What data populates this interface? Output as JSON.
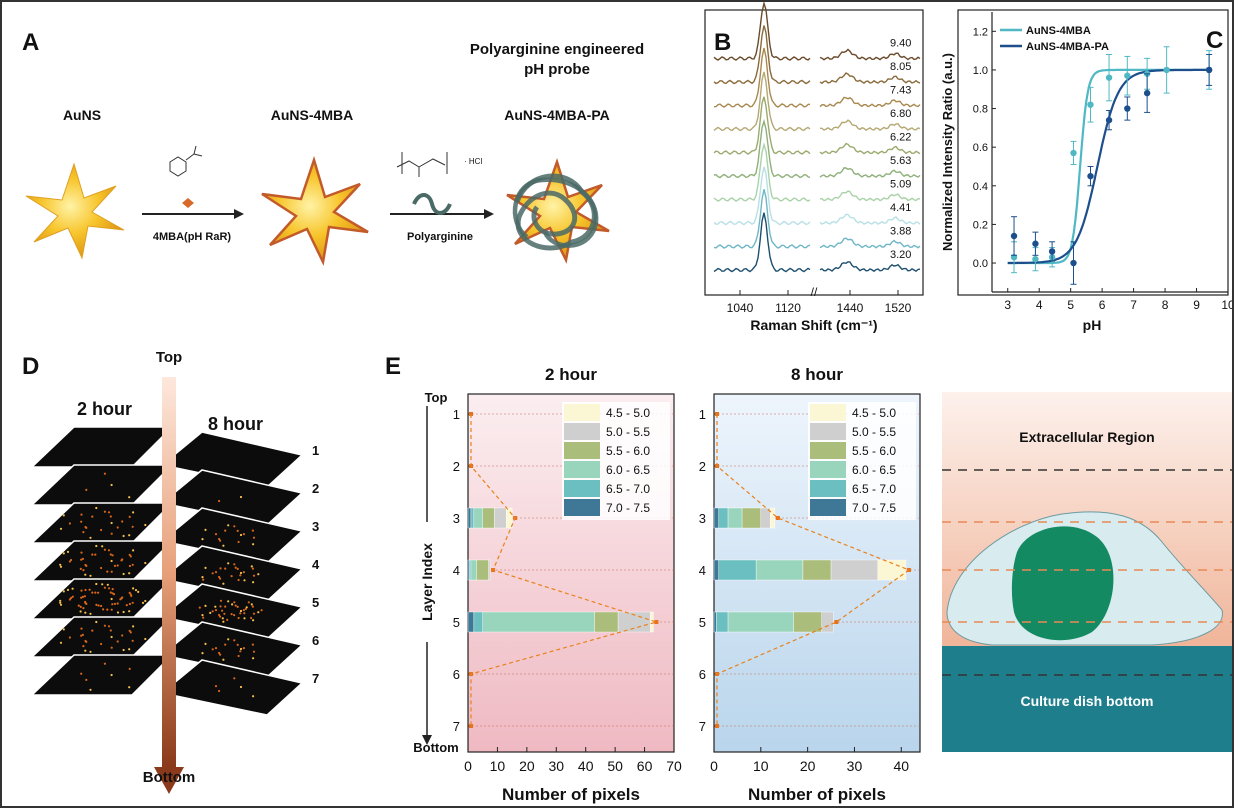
{
  "panels": {
    "A": "A",
    "B": "B",
    "C": "C",
    "D": "D",
    "E": "E"
  },
  "panel_a": {
    "header_line1": "Polyarginine engineered",
    "header_line2": "pH probe",
    "label_ausn": "AuNS",
    "label_4mba": "AuNS-4MBA",
    "label_pa": "AuNS-4MBA-PA",
    "arrow1_label": "4MBA(pH RaR)",
    "arrow2_label": "Polyarginine",
    "hcl": "· HCl",
    "colors": {
      "star": "#f2b21a",
      "star_edge": "#d4861a",
      "coat": "#4a6a66"
    }
  },
  "panel_d": {
    "top": "Top",
    "bottom": "Bottom",
    "label_2h": "2 hour",
    "label_8h": "8 hour",
    "layers": [
      "1",
      "2",
      "3",
      "4",
      "5",
      "6",
      "7"
    ]
  },
  "panel_e_schematic": {
    "extracellular": "Extracellular Region",
    "dish": "Culture dish bottom",
    "colors": {
      "dish": "#1e7e8c",
      "nucleus": "#148a62",
      "cell": "#d8ecef"
    }
  },
  "chart_data": [
    {
      "id": "B",
      "type": "line",
      "xlabel": "Raman Shift (cm⁻¹)",
      "xticks": [
        "1040",
        "1120",
        "1440",
        "1520"
      ],
      "axis_break": "//",
      "series": [
        {
          "name": "9.40",
          "color": "#6b4a2a"
        },
        {
          "name": "8.05",
          "color": "#8a6a3a"
        },
        {
          "name": "7.43",
          "color": "#a8884e"
        },
        {
          "name": "6.80",
          "color": "#b5a873"
        },
        {
          "name": "6.22",
          "color": "#9aaa6e"
        },
        {
          "name": "5.63",
          "color": "#8fb07a"
        },
        {
          "name": "5.09",
          "color": "#a9d2a8"
        },
        {
          "name": "4.41",
          "color": "#b8e0e6"
        },
        {
          "name": "3.88",
          "color": "#6fb6c6"
        },
        {
          "name": "3.20",
          "color": "#1d4f6e"
        }
      ]
    },
    {
      "id": "C",
      "type": "scatter",
      "xlabel": "pH",
      "ylabel": "Normalized Intensity Ratio (a.u.)",
      "xlim": [
        2.5,
        10
      ],
      "ylim": [
        -0.15,
        1.3
      ],
      "xticks": [
        3,
        4,
        5,
        6,
        7,
        8,
        9,
        10
      ],
      "yticks": [
        0.0,
        0.2,
        0.4,
        0.6,
        0.8,
        1.0,
        1.2
      ],
      "legend": "top-left",
      "series": [
        {
          "name": "AuNS-4MBA",
          "color": "#4fb8c4",
          "x": [
            3.2,
            3.88,
            4.41,
            5.09,
            5.63,
            6.22,
            6.8,
            7.43,
            8.05,
            9.4
          ],
          "y": [
            0.03,
            0.02,
            0.03,
            0.57,
            0.82,
            0.96,
            0.97,
            0.98,
            1.0,
            1.0
          ],
          "err": [
            0.08,
            0.06,
            0.05,
            0.06,
            0.09,
            0.12,
            0.1,
            0.08,
            0.12,
            0.1
          ],
          "fit_pKa": 5.3,
          "fit_slope": 0.12
        },
        {
          "name": "AuNS-4MBA-PA",
          "color": "#1d4f8c",
          "x": [
            3.2,
            3.88,
            4.41,
            5.09,
            5.63,
            6.22,
            6.8,
            7.43,
            9.4
          ],
          "y": [
            0.14,
            0.1,
            0.06,
            0.0,
            0.45,
            0.74,
            0.8,
            0.88,
            1.0
          ],
          "err": [
            0.1,
            0.06,
            0.05,
            0.11,
            0.05,
            0.05,
            0.06,
            0.1,
            0.08
          ],
          "fit_pKa": 5.85,
          "fit_slope": 0.33
        }
      ]
    },
    {
      "id": "E1",
      "type": "bar",
      "orientation": "horizontal-stacked",
      "title": "2 hour",
      "xlabel": "Number of pixels",
      "ylabel": "Layer Index",
      "top_label": "Top",
      "bottom_label": "Bottom",
      "xlim": [
        0,
        70
      ],
      "xticks": [
        0,
        10,
        20,
        30,
        40,
        50,
        60,
        70
      ],
      "categories": [
        "1",
        "2",
        "3",
        "4",
        "5",
        "6",
        "7"
      ],
      "legend": "top-right",
      "series": [
        {
          "name": "7.0 - 7.5",
          "color": "#3e7896",
          "values": [
            0,
            0,
            1,
            0.5,
            2,
            0,
            0
          ]
        },
        {
          "name": "6.5 - 7.0",
          "color": "#6cbfc0",
          "values": [
            0,
            0,
            1,
            0.5,
            3,
            0,
            0
          ]
        },
        {
          "name": "6.0 - 6.5",
          "color": "#99d5bc",
          "values": [
            0,
            0,
            3,
            2,
            38,
            0,
            0
          ]
        },
        {
          "name": "5.5 - 6.0",
          "color": "#aabd7a",
          "values": [
            0,
            0,
            4,
            4,
            8,
            0,
            0
          ]
        },
        {
          "name": "5.0 - 5.5",
          "color": "#cfcfcf",
          "values": [
            0,
            0,
            4,
            0.5,
            11,
            0,
            0
          ]
        },
        {
          "name": "4.5 - 5.0",
          "color": "#fbf6d4",
          "values": [
            0,
            0,
            2,
            0,
            1,
            0,
            0
          ]
        }
      ],
      "background": [
        "#f9e6e8",
        "#f1c0c8"
      ]
    },
    {
      "id": "E2",
      "type": "bar",
      "orientation": "horizontal-stacked",
      "title": "8 hour",
      "xlabel": "Number of pixels",
      "xlim": [
        0,
        44
      ],
      "xticks": [
        0,
        10,
        20,
        30,
        40
      ],
      "categories": [
        "1",
        "2",
        "3",
        "4",
        "5",
        "6",
        "7"
      ],
      "legend": "top-right",
      "series": [
        {
          "name": "7.0 - 7.5",
          "color": "#3e7896",
          "values": [
            0,
            0,
            1,
            1,
            0.5,
            0,
            0
          ]
        },
        {
          "name": "6.5 - 7.0",
          "color": "#6cbfc0",
          "values": [
            0,
            0,
            2,
            8,
            2.5,
            0,
            0
          ]
        },
        {
          "name": "6.0 - 6.5",
          "color": "#99d5bc",
          "values": [
            0,
            0,
            3,
            10,
            14,
            0,
            0
          ]
        },
        {
          "name": "5.5 - 6.0",
          "color": "#aabd7a",
          "values": [
            0,
            0,
            4,
            6,
            6,
            0,
            0
          ]
        },
        {
          "name": "5.0 - 5.5",
          "color": "#cfcfcf",
          "values": [
            0,
            0,
            2,
            10,
            2.5,
            0,
            0
          ]
        },
        {
          "name": "4.5 - 5.0",
          "color": "#fbf6d4",
          "values": [
            0,
            0,
            1,
            6,
            0,
            0,
            0
          ]
        }
      ],
      "background": [
        "#eaf3fb",
        "#bcd7ee"
      ]
    }
  ]
}
